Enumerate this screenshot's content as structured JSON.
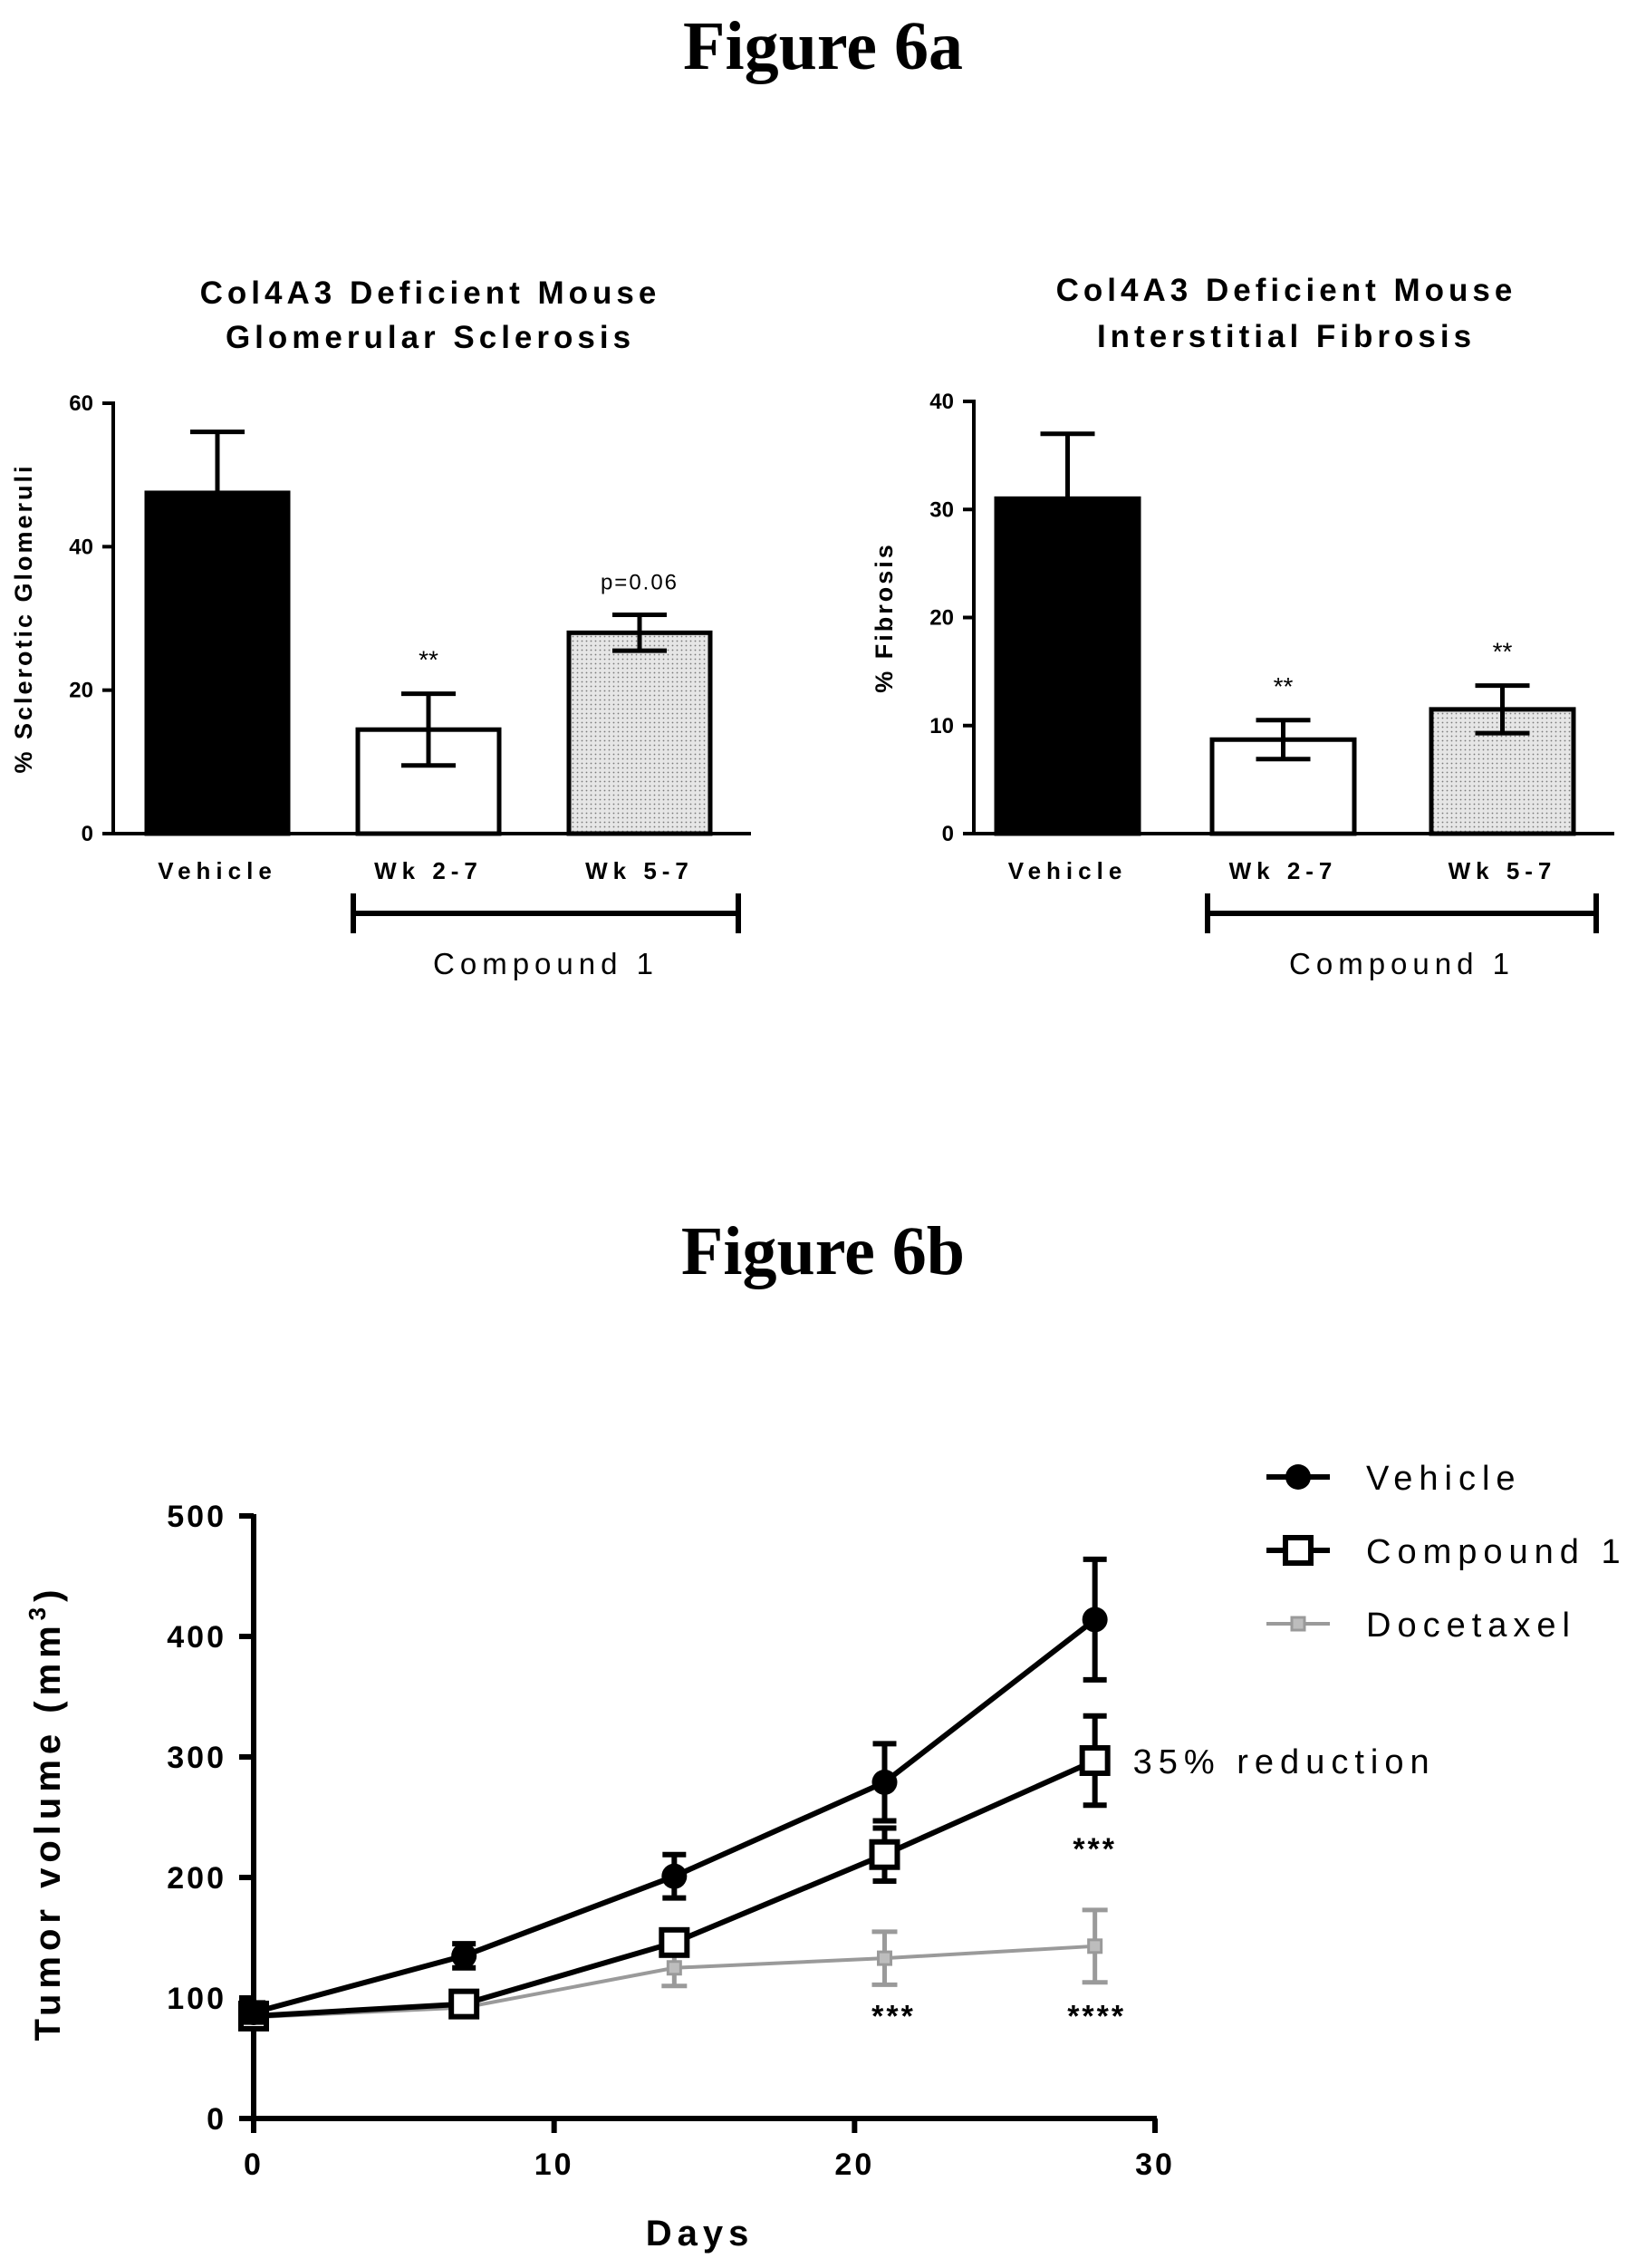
{
  "figure_a_title": "Figure 6a",
  "figure_b_title": "Figure 6b",
  "colors": {
    "vehicle_bar": "#000000",
    "wk27_bar": "#ffffff",
    "wk57_bar": "#d9d9d9",
    "docetaxel_line": "#9a9a9a"
  },
  "chart_data": [
    {
      "type": "bar",
      "title_lines": [
        "Col4A3 Deficient Mouse",
        "Glomerular  Sclerosis"
      ],
      "ylabel": "% Sclerotic  Glomeruli",
      "ylim": [
        0,
        60
      ],
      "yticks": [
        0,
        20,
        40,
        60
      ],
      "categories": [
        "Vehicle",
        "Wk 2-7",
        "Wk 5-7"
      ],
      "values": [
        47.5,
        14.5,
        28
      ],
      "errors": [
        8.5,
        5,
        2.5
      ],
      "fills": [
        "black",
        "white",
        "dotted-gray"
      ],
      "annotations": [
        "",
        "**",
        "p=0.06"
      ],
      "group_label": "Compound 1",
      "group_categories": [
        "Wk 2-7",
        "Wk 5-7"
      ]
    },
    {
      "type": "bar",
      "title_lines": [
        "Col4A3 Deficient Mouse",
        "Interstitial  Fibrosis"
      ],
      "ylabel": "%  Fibrosis",
      "ylim": [
        0,
        40
      ],
      "yticks": [
        0,
        10,
        20,
        30,
        40
      ],
      "categories": [
        "Vehicle",
        "Wk 2-7",
        "Wk 5-7"
      ],
      "values": [
        31,
        8.7,
        11.5
      ],
      "errors": [
        6,
        1.8,
        2.2
      ],
      "fills": [
        "black",
        "white",
        "dotted-gray"
      ],
      "annotations": [
        "",
        "**",
        "**"
      ],
      "group_label": "Compound 1",
      "group_categories": [
        "Wk 2-7",
        "Wk 5-7"
      ]
    },
    {
      "type": "line",
      "xlabel": "Days",
      "ylabel": "Tumor volume (mm",
      "ylabel_sup": "3",
      "ylabel_close": ")",
      "xlim": [
        0,
        30
      ],
      "ylim": [
        0,
        500
      ],
      "xticks": [
        0,
        10,
        20,
        30
      ],
      "yticks": [
        0,
        100,
        200,
        300,
        400,
        500
      ],
      "legend_position": "top-right",
      "series": [
        {
          "name": "Vehicle",
          "marker": "filled-circle",
          "x": [
            0,
            7,
            14,
            21,
            28
          ],
          "y": [
            88,
            135,
            201,
            279,
            414
          ],
          "err": [
            8,
            10,
            18,
            32,
            50
          ]
        },
        {
          "name": "Compound 1",
          "marker": "open-square",
          "x": [
            0,
            7,
            14,
            21,
            28
          ],
          "y": [
            85,
            95,
            146,
            219,
            297
          ],
          "err": [
            6,
            5,
            10,
            22,
            37
          ]
        },
        {
          "name": "Docetaxel",
          "marker": "hatched",
          "x": [
            0,
            7,
            14,
            21,
            28
          ],
          "y": [
            84,
            92,
            125,
            133,
            143
          ],
          "err": [
            5,
            5,
            15,
            22,
            30
          ]
        }
      ],
      "annotations": [
        {
          "text": "35% reduction",
          "x": 28,
          "y": 297
        },
        {
          "text": "***",
          "x": 28,
          "y": 230
        },
        {
          "text": "***",
          "x": 21,
          "y": 90
        },
        {
          "text": "****",
          "x": 28,
          "y": 90
        }
      ]
    }
  ]
}
